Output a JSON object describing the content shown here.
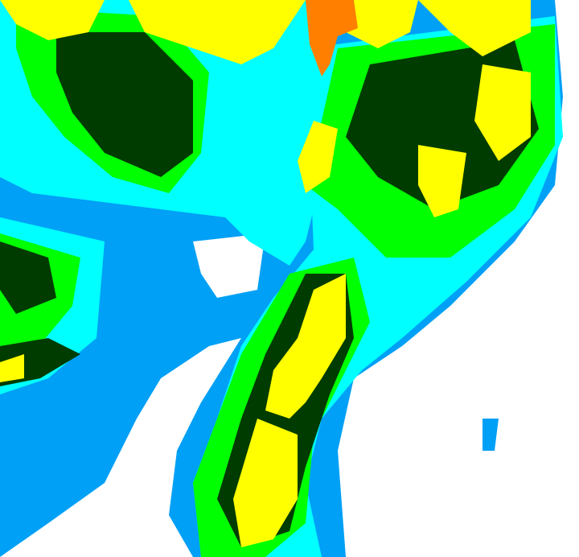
{
  "map": {
    "kind": "radar-reflectivity",
    "palette": {
      "background": "#ffffff",
      "light_blue": "#00a0f6",
      "cyan": "#00ffff",
      "green": "#00ff00",
      "dark_green": "#003c00",
      "yellow": "#ffff00",
      "orange": "#ff8000"
    }
  }
}
